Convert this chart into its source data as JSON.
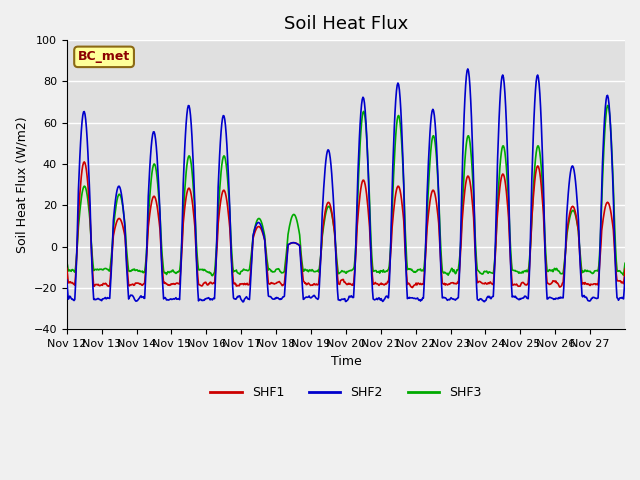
{
  "title": "Soil Heat Flux",
  "xlabel": "Time",
  "ylabel": "Soil Heat Flux (W/m2)",
  "ylim": [
    -40,
    100
  ],
  "x_tick_labels": [
    "Nov 12",
    "Nov 13",
    "Nov 14",
    "Nov 15",
    "Nov 16",
    "Nov 17",
    "Nov 18",
    "Nov 19",
    "Nov 20",
    "Nov 21",
    "Nov 22",
    "Nov 23",
    "Nov 24",
    "Nov 25",
    "Nov 26",
    "Nov 27"
  ],
  "colors": {
    "SHF1": "#cc0000",
    "SHF2": "#0000cc",
    "SHF3": "#00aa00"
  },
  "legend_label": "BC_met",
  "legend_label_color": "#8b0000",
  "legend_box_facecolor": "#ffff99",
  "legend_box_edgecolor": "#8b6914",
  "plot_bg_color": "#e0e0e0",
  "fig_bg_color": "#f0f0f0",
  "grid_color": "#ffffff",
  "linewidth": 1.2,
  "title_fontsize": 13,
  "axis_fontsize": 9,
  "tick_fontsize": 8,
  "day_amps_shf2": [
    67,
    30,
    57,
    70,
    65,
    12,
    2,
    48,
    74,
    81,
    68,
    88,
    85,
    85,
    40,
    75
  ],
  "day_amps_shf1": [
    42,
    14,
    25,
    29,
    28,
    10,
    2,
    22,
    33,
    30,
    28,
    35,
    36,
    40,
    20,
    22
  ],
  "day_amps_shf3": [
    30,
    26,
    41,
    45,
    45,
    14,
    16,
    20,
    67,
    65,
    55,
    55,
    50,
    50,
    18,
    70
  ],
  "night_base_shf1": -18,
  "night_base_shf2": -25,
  "night_base_shf3": -12,
  "yticks": [
    -40,
    -20,
    0,
    20,
    40,
    60,
    80,
    100
  ]
}
